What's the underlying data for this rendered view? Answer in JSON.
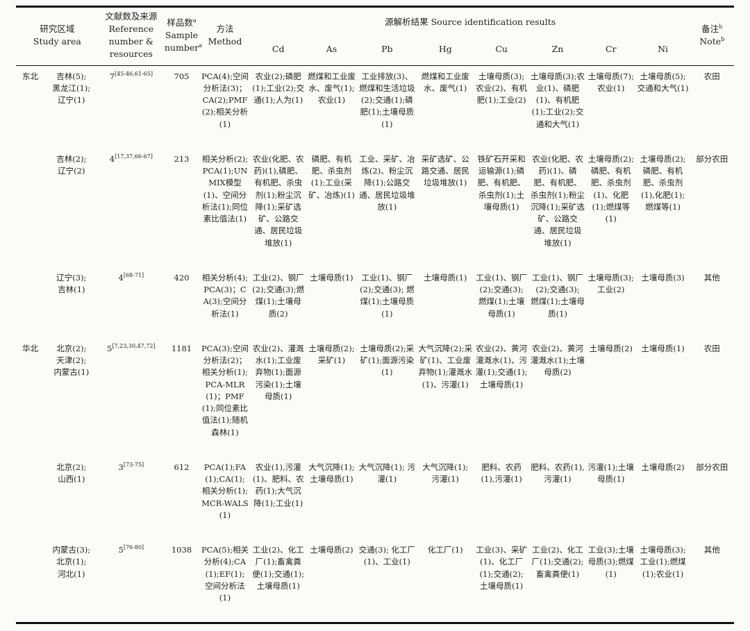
{
  "table": {
    "header": {
      "study_area_zh": "研究区域",
      "study_area_en": "Study area",
      "reference_zh": "文献数及来源",
      "reference_en1": "Reference number &",
      "reference_en2": "resources",
      "sample_zh": "样品数",
      "sample_en1": "Sample",
      "sample_en2": "number",
      "sup_a": "a",
      "sup_b": "b",
      "method_zh": "方法",
      "method_en": "Method",
      "source_results": "源解析结果 Source identification results",
      "metals": [
        "Cd",
        "As",
        "Pb",
        "Hg",
        "Cu",
        "Zn",
        "Cr",
        "Ni"
      ],
      "note_zh": "备注",
      "note_en": "Note"
    },
    "rows": [
      {
        "region": "东北",
        "area": "吉林(5);\n黑龙江(1);\n辽宁(1)",
        "ref_base": "7",
        "ref_sup": "[45-46,61-65]",
        "sample": "705",
        "method": "PCA(4);空间分析法(3)；CA(2);PMF(2);相关分析(1)",
        "cd": "农业(2);磷肥(1);工业(2);交通(1);人为(1)",
        "as": "燃煤和工业废水、废气(1);农业(1)",
        "pb": "工业排放(3)、燃煤和生活垃圾(2);交通(1);磷肥(1);土壤母质(1)",
        "hg": "燃煤和工业废水、废气(1)",
        "cu": "土壤母质(3);农业(2)、有机肥(1);工业(2)",
        "zn": "土壤母质(3);农业(1)、磷肥(1)、有机肥(1);工业(2);交通和大气(1)",
        "cr": "土壤母质(7);农业(1)",
        "ni": "土壤母质(5);交通和大气(1)",
        "note": "农田"
      },
      {
        "region": "",
        "area": "吉林(2);\n辽宁(2)",
        "ref_base": "4",
        "ref_sup": "[17,37,66-67]",
        "sample": "213",
        "method": "相关分析(2);PCA(1);UNMIX模型(1)、空间分析法(1);同位素比值法(1)",
        "cd": "农业(化肥、农药)(1),磷肥、有机肥、杀虫剂(1);粉尘沉降(1);采矿选矿、公路交通、居民垃圾堆放(1)",
        "as": "磷肥、有机肥、杀虫剂(1);工业(采矿、冶炼)(1)",
        "pb": "工业、采矿、冶炼(2)、粉尘沉降(1);公路交通、居民垃圾堆放(1)",
        "hg": "采矿选矿、公路交通、居民垃圾堆放(1)",
        "cu": "铁矿石开采和运输源(1);磷肥、有机肥、杀虫剂(1);土壤母质(1)",
        "zn": "农业(化肥、农药)(1)、磷肥、有机肥、杀虫剂(1);粉尘沉降(1);采矿选矿、公路交通、居民垃圾堆放(1)",
        "cr": "土壤母质(2);磷肥、有机肥、杀虫剂(1)、化肥(1);燃煤等(1)",
        "ni": "土壤母质(2);磷肥、有机肥、杀虫剂(1),化肥(1);燃煤等(1)",
        "note": "部分农田"
      },
      {
        "region": "",
        "area": "辽宁(3);\n吉林(1)",
        "ref_base": "4",
        "ref_sup": "[68-71]",
        "sample": "420",
        "method": "相关分析(4);PCA(3)；CA(3);空间分析法(1)",
        "cd": "工业(2)、钢厂(2);交通(3);燃煤(1);土壤母质(2)",
        "as": "土壤母质(1)",
        "pb": "工业(1)、钢厂(2);交通(3); 燃煤(1);土壤母质(1)",
        "hg": "土壤母质(1)",
        "cu": "工业(1)、钢厂(2);交通(3); 燃煤(1);土壤母质(1)",
        "zn": "工业(1)、钢厂(2);交通(3); 燃煤(1);土壤母质(1)",
        "cr": "土壤母质(3); 工业(2)",
        "ni": "土壤母质(3)",
        "note": "其他"
      },
      {
        "region": "华北",
        "area": "北京(2);\n天津(2);\n内蒙古(1)",
        "ref_base": "5",
        "ref_sup": "[7,23,30,47,72]",
        "sample": "1181",
        "method": "PCA(3);空间分析法(2)； 相关分析(1);PCA-MLR(1)；PMF(1);同位素比值法(1);随机森林(1)",
        "cd": "农业(2)、灌溉水(1);工业废弃物(1);面源污染(1);土壤母质(1)",
        "as": "土壤母质(2); 采矿(1)",
        "pb": "土壤母质(2);采矿(1);面源污染(1)",
        "hg": "大气沉降(2);采矿(1)、工业废弃物(1);灌溉水(1)、污灌(1)",
        "cu": "农业(2)、黄河灌溉水(1)、污灌(1);交通(1);土壤母质(1)",
        "zn": "农业(2)、黄河灌溉水(1);土壤母质(2)",
        "cr": "土壤母质(2)",
        "ni": "土壤母质(1)",
        "note": "农田"
      },
      {
        "region": "",
        "area": "北京(2);\n山西(1)",
        "ref_base": "3",
        "ref_sup": "[73-75]",
        "sample": "612",
        "method": "PCA(1);FA(1);CA(1); 相关分析(1);MCR-WALS(1)",
        "cd": "农业(1),污灌(1)、肥料、农药(1);大气沉降(1);工业(1)",
        "as": "大气沉降(1); 土壤母质(1)",
        "pb": "大气沉降(1); 污灌(1)",
        "hg": "大气沉降(1); 污灌(1)",
        "cu": "肥料、农药(1),污灌(1)",
        "zn": "肥料、农药(1),污灌(1)",
        "cr": "污灌(1);土壤母质(1)",
        "ni": "土壤母质(2)",
        "note": "部分农田"
      },
      {
        "region": "",
        "area": "内蒙古(3);\n北京(1);\n河北(1)",
        "ref_base": "5",
        "ref_sup": "[76-80]",
        "sample": "1038",
        "method": "PCA(5);相关分析(4);CA(1);EF(1); 空间分析法(1)",
        "cd": "工业(2)、化工厂(1);畜禽粪便(1);交通(1);土壤母质(1)",
        "as": "土壤母质(2)",
        "pb": "交通(3); 化工厂(1)、工业(1)",
        "hg": "化工厂(1)",
        "cu": "工业(3)、采矿(1)、化工厂(1);交通(2); 土壤母质(1)",
        "zn": "工业(2)、化工厂(1);交通(2);畜禽粪便(1)",
        "cr": "工业(3);土壤母质(3);燃煤(1)",
        "ni": "土壤母质(3); 工业(1);燃煤(1);农业(1)",
        "note": "其他"
      }
    ]
  }
}
